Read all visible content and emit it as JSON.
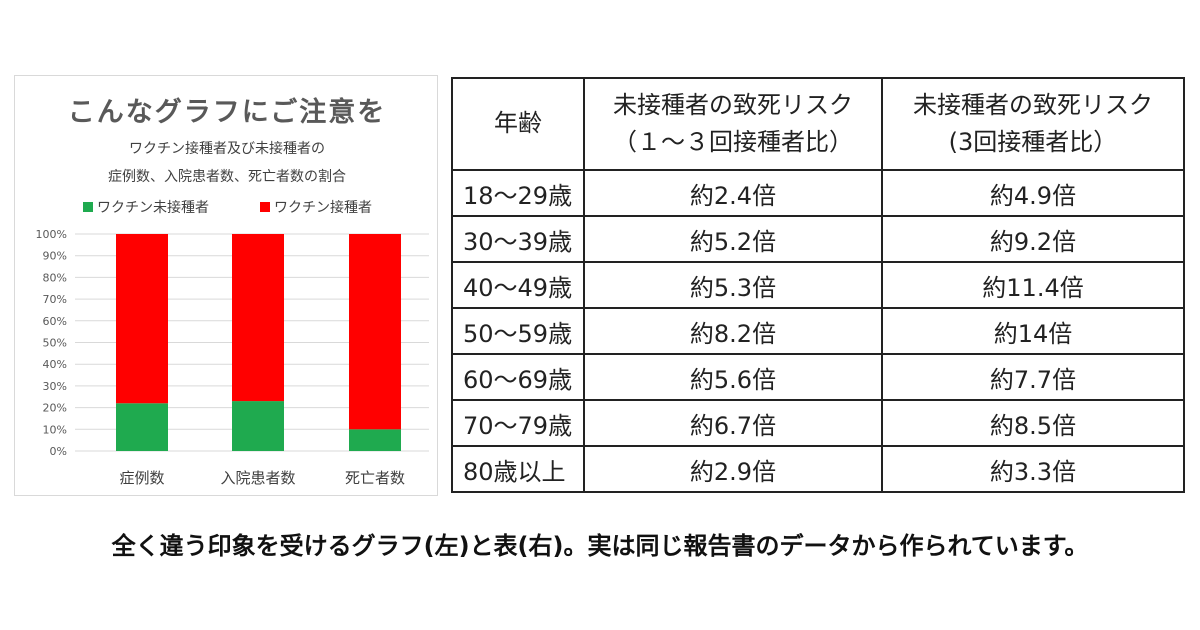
{
  "chart_data": {
    "type": "bar",
    "stacked": true,
    "title": "こんなグラフにご注意を",
    "subtitle_lines": [
      "ワクチン接種者及び未接種者の",
      "症例数、入院患者数、死亡者数の割合"
    ],
    "categories": [
      "症例数",
      "入院患者数",
      "死亡者数"
    ],
    "series": [
      {
        "name": "ワクチン未接種者",
        "color": "#1faa4f",
        "values": [
          22,
          23,
          10
        ]
      },
      {
        "name": "ワクチン接種者",
        "color": "#ff0000",
        "values": [
          78,
          77,
          90
        ]
      }
    ],
    "ylim": [
      0,
      100
    ],
    "y_ticks": [
      "0%",
      "10%",
      "20%",
      "30%",
      "40%",
      "50%",
      "60%",
      "70%",
      "80%",
      "90%",
      "100%"
    ],
    "grid": true,
    "legend_position": "top"
  },
  "table": {
    "headers": [
      "年齢",
      "未接種者の致死リスク（１～３回接種者比）",
      "未接種者の致死リスク(3回接種者比）"
    ],
    "header_lines": [
      [
        "年齢"
      ],
      [
        "未接種者の致死リスク",
        "（１～３回接種者比）"
      ],
      [
        "未接種者の致死リスク",
        "(3回接種者比）"
      ]
    ],
    "rows": [
      [
        "18～29歳",
        "約2.4倍",
        "約4.9倍"
      ],
      [
        "30～39歳",
        "約5.2倍",
        "約9.2倍"
      ],
      [
        "40～49歳",
        "約5.3倍",
        "約11.4倍"
      ],
      [
        "50～59歳",
        "約8.2倍",
        "約14倍"
      ],
      [
        "60～69歳",
        "約5.6倍",
        "約7.7倍"
      ],
      [
        "70～79歳",
        "約6.7倍",
        "約8.5倍"
      ],
      [
        "80歳以上",
        "約2.9倍",
        "約3.3倍"
      ]
    ]
  },
  "caption": "全く違う印象を受けるグラフ(左)と表(右)。実は同じ報告書のデータから作られています。"
}
